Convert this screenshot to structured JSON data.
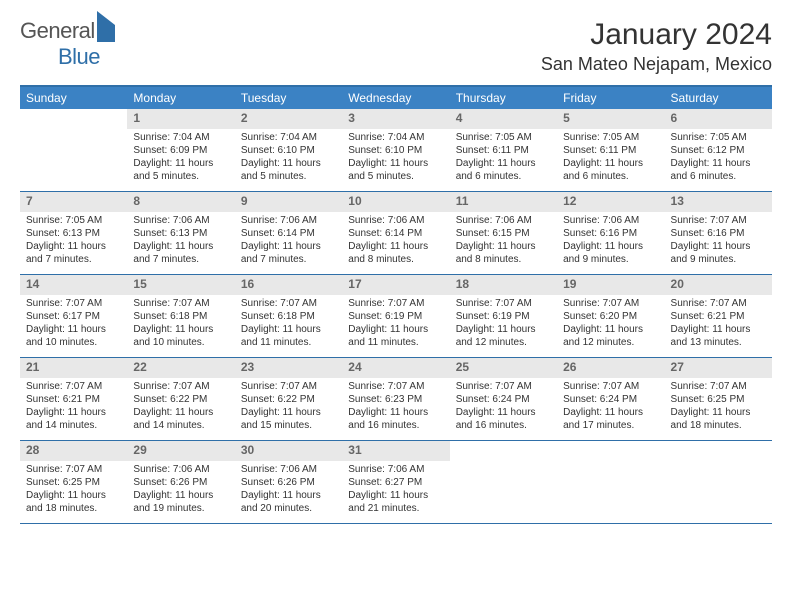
{
  "brand": {
    "name1": "General",
    "name2": "Blue"
  },
  "title": "January 2024",
  "location": "San Mateo Nejapam, Mexico",
  "colors": {
    "header_bg": "#3b82c4",
    "border": "#2f6fa8",
    "daynum_bg": "#e8e8e8",
    "text": "#333333",
    "daynum_text": "#666666",
    "page_bg": "#ffffff"
  },
  "typography": {
    "title_fontsize": 30,
    "location_fontsize": 18,
    "dow_fontsize": 12,
    "daynum_fontsize": 12,
    "body_fontsize": 10
  },
  "days_of_week": [
    "Sunday",
    "Monday",
    "Tuesday",
    "Wednesday",
    "Thursday",
    "Friday",
    "Saturday"
  ],
  "weeks": [
    [
      {
        "n": "",
        "sr": "",
        "ss": "",
        "dl": ""
      },
      {
        "n": "1",
        "sr": "Sunrise: 7:04 AM",
        "ss": "Sunset: 6:09 PM",
        "dl": "Daylight: 11 hours and 5 minutes."
      },
      {
        "n": "2",
        "sr": "Sunrise: 7:04 AM",
        "ss": "Sunset: 6:10 PM",
        "dl": "Daylight: 11 hours and 5 minutes."
      },
      {
        "n": "3",
        "sr": "Sunrise: 7:04 AM",
        "ss": "Sunset: 6:10 PM",
        "dl": "Daylight: 11 hours and 5 minutes."
      },
      {
        "n": "4",
        "sr": "Sunrise: 7:05 AM",
        "ss": "Sunset: 6:11 PM",
        "dl": "Daylight: 11 hours and 6 minutes."
      },
      {
        "n": "5",
        "sr": "Sunrise: 7:05 AM",
        "ss": "Sunset: 6:11 PM",
        "dl": "Daylight: 11 hours and 6 minutes."
      },
      {
        "n": "6",
        "sr": "Sunrise: 7:05 AM",
        "ss": "Sunset: 6:12 PM",
        "dl": "Daylight: 11 hours and 6 minutes."
      }
    ],
    [
      {
        "n": "7",
        "sr": "Sunrise: 7:05 AM",
        "ss": "Sunset: 6:13 PM",
        "dl": "Daylight: 11 hours and 7 minutes."
      },
      {
        "n": "8",
        "sr": "Sunrise: 7:06 AM",
        "ss": "Sunset: 6:13 PM",
        "dl": "Daylight: 11 hours and 7 minutes."
      },
      {
        "n": "9",
        "sr": "Sunrise: 7:06 AM",
        "ss": "Sunset: 6:14 PM",
        "dl": "Daylight: 11 hours and 7 minutes."
      },
      {
        "n": "10",
        "sr": "Sunrise: 7:06 AM",
        "ss": "Sunset: 6:14 PM",
        "dl": "Daylight: 11 hours and 8 minutes."
      },
      {
        "n": "11",
        "sr": "Sunrise: 7:06 AM",
        "ss": "Sunset: 6:15 PM",
        "dl": "Daylight: 11 hours and 8 minutes."
      },
      {
        "n": "12",
        "sr": "Sunrise: 7:06 AM",
        "ss": "Sunset: 6:16 PM",
        "dl": "Daylight: 11 hours and 9 minutes."
      },
      {
        "n": "13",
        "sr": "Sunrise: 7:07 AM",
        "ss": "Sunset: 6:16 PM",
        "dl": "Daylight: 11 hours and 9 minutes."
      }
    ],
    [
      {
        "n": "14",
        "sr": "Sunrise: 7:07 AM",
        "ss": "Sunset: 6:17 PM",
        "dl": "Daylight: 11 hours and 10 minutes."
      },
      {
        "n": "15",
        "sr": "Sunrise: 7:07 AM",
        "ss": "Sunset: 6:18 PM",
        "dl": "Daylight: 11 hours and 10 minutes."
      },
      {
        "n": "16",
        "sr": "Sunrise: 7:07 AM",
        "ss": "Sunset: 6:18 PM",
        "dl": "Daylight: 11 hours and 11 minutes."
      },
      {
        "n": "17",
        "sr": "Sunrise: 7:07 AM",
        "ss": "Sunset: 6:19 PM",
        "dl": "Daylight: 11 hours and 11 minutes."
      },
      {
        "n": "18",
        "sr": "Sunrise: 7:07 AM",
        "ss": "Sunset: 6:19 PM",
        "dl": "Daylight: 11 hours and 12 minutes."
      },
      {
        "n": "19",
        "sr": "Sunrise: 7:07 AM",
        "ss": "Sunset: 6:20 PM",
        "dl": "Daylight: 11 hours and 12 minutes."
      },
      {
        "n": "20",
        "sr": "Sunrise: 7:07 AM",
        "ss": "Sunset: 6:21 PM",
        "dl": "Daylight: 11 hours and 13 minutes."
      }
    ],
    [
      {
        "n": "21",
        "sr": "Sunrise: 7:07 AM",
        "ss": "Sunset: 6:21 PM",
        "dl": "Daylight: 11 hours and 14 minutes."
      },
      {
        "n": "22",
        "sr": "Sunrise: 7:07 AM",
        "ss": "Sunset: 6:22 PM",
        "dl": "Daylight: 11 hours and 14 minutes."
      },
      {
        "n": "23",
        "sr": "Sunrise: 7:07 AM",
        "ss": "Sunset: 6:22 PM",
        "dl": "Daylight: 11 hours and 15 minutes."
      },
      {
        "n": "24",
        "sr": "Sunrise: 7:07 AM",
        "ss": "Sunset: 6:23 PM",
        "dl": "Daylight: 11 hours and 16 minutes."
      },
      {
        "n": "25",
        "sr": "Sunrise: 7:07 AM",
        "ss": "Sunset: 6:24 PM",
        "dl": "Daylight: 11 hours and 16 minutes."
      },
      {
        "n": "26",
        "sr": "Sunrise: 7:07 AM",
        "ss": "Sunset: 6:24 PM",
        "dl": "Daylight: 11 hours and 17 minutes."
      },
      {
        "n": "27",
        "sr": "Sunrise: 7:07 AM",
        "ss": "Sunset: 6:25 PM",
        "dl": "Daylight: 11 hours and 18 minutes."
      }
    ],
    [
      {
        "n": "28",
        "sr": "Sunrise: 7:07 AM",
        "ss": "Sunset: 6:25 PM",
        "dl": "Daylight: 11 hours and 18 minutes."
      },
      {
        "n": "29",
        "sr": "Sunrise: 7:06 AM",
        "ss": "Sunset: 6:26 PM",
        "dl": "Daylight: 11 hours and 19 minutes."
      },
      {
        "n": "30",
        "sr": "Sunrise: 7:06 AM",
        "ss": "Sunset: 6:26 PM",
        "dl": "Daylight: 11 hours and 20 minutes."
      },
      {
        "n": "31",
        "sr": "Sunrise: 7:06 AM",
        "ss": "Sunset: 6:27 PM",
        "dl": "Daylight: 11 hours and 21 minutes."
      },
      {
        "n": "",
        "sr": "",
        "ss": "",
        "dl": ""
      },
      {
        "n": "",
        "sr": "",
        "ss": "",
        "dl": ""
      },
      {
        "n": "",
        "sr": "",
        "ss": "",
        "dl": ""
      }
    ]
  ]
}
